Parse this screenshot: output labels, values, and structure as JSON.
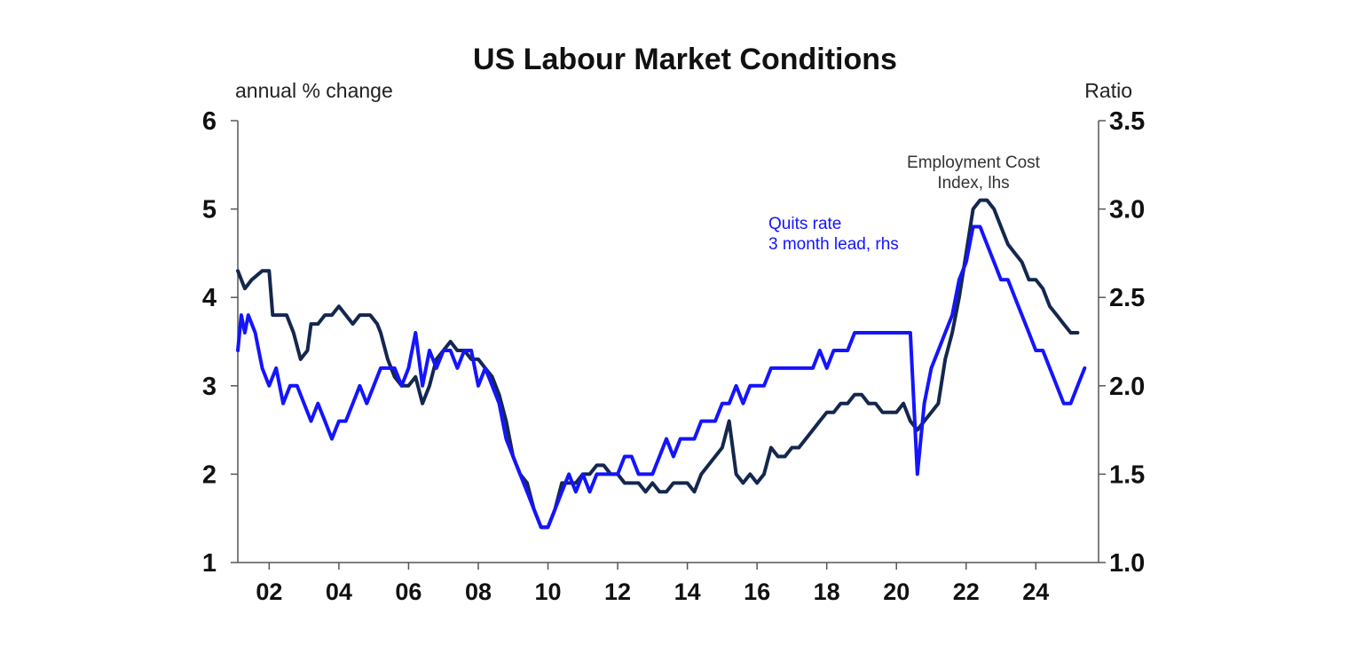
{
  "chart_data": {
    "type": "line",
    "title": "US Labour Market Conditions",
    "left_axis_label": "annual % change",
    "right_axis_label": "Ratio",
    "left_ylim": [
      1,
      6
    ],
    "left_ticks": [
      1,
      2,
      3,
      4,
      5,
      6
    ],
    "right_ylim": [
      1.0,
      3.5
    ],
    "right_ticks": [
      "1.0",
      "1.5",
      "2.0",
      "2.5",
      "3.0",
      "3.5"
    ],
    "xlim": [
      2001.1,
      2025.8
    ],
    "x_ticks": [
      {
        "value": 2002,
        "label": "02"
      },
      {
        "value": 2004,
        "label": "04"
      },
      {
        "value": 2006,
        "label": "06"
      },
      {
        "value": 2008,
        "label": "08"
      },
      {
        "value": 2010,
        "label": "10"
      },
      {
        "value": 2012,
        "label": "12"
      },
      {
        "value": 2014,
        "label": "14"
      },
      {
        "value": 2016,
        "label": "16"
      },
      {
        "value": 2018,
        "label": "18"
      },
      {
        "value": 2020,
        "label": "20"
      },
      {
        "value": 2022,
        "label": "22"
      },
      {
        "value": 2024,
        "label": "24"
      }
    ],
    "grid": false,
    "colors": {
      "eci": "#14274e",
      "quits": "#1414ff",
      "axis": "#555555"
    },
    "annotations": {
      "eci_line1": "Employment Cost",
      "eci_line2": "Index, lhs",
      "quits_line1": "Quits rate",
      "quits_line2": "3 month lead, rhs"
    },
    "series": [
      {
        "key": "eci",
        "axis": "left",
        "points": [
          [
            2001.1,
            4.3
          ],
          [
            2001.3,
            4.1
          ],
          [
            2001.5,
            4.2
          ],
          [
            2001.8,
            4.3
          ],
          [
            2002.0,
            4.3
          ],
          [
            2002.1,
            3.8
          ],
          [
            2002.3,
            3.8
          ],
          [
            2002.5,
            3.8
          ],
          [
            2002.7,
            3.6
          ],
          [
            2002.9,
            3.3
          ],
          [
            2003.1,
            3.4
          ],
          [
            2003.2,
            3.7
          ],
          [
            2003.4,
            3.7
          ],
          [
            2003.6,
            3.8
          ],
          [
            2003.8,
            3.8
          ],
          [
            2004.0,
            3.9
          ],
          [
            2004.2,
            3.8
          ],
          [
            2004.4,
            3.7
          ],
          [
            2004.6,
            3.8
          ],
          [
            2004.9,
            3.8
          ],
          [
            2005.1,
            3.7
          ],
          [
            2005.2,
            3.6
          ],
          [
            2005.4,
            3.3
          ],
          [
            2005.6,
            3.1
          ],
          [
            2005.8,
            3.0
          ],
          [
            2006.0,
            3.0
          ],
          [
            2006.2,
            3.1
          ],
          [
            2006.4,
            2.8
          ],
          [
            2006.6,
            3.0
          ],
          [
            2006.8,
            3.3
          ],
          [
            2007.0,
            3.4
          ],
          [
            2007.2,
            3.5
          ],
          [
            2007.4,
            3.4
          ],
          [
            2007.6,
            3.4
          ],
          [
            2007.8,
            3.3
          ],
          [
            2008.0,
            3.3
          ],
          [
            2008.2,
            3.2
          ],
          [
            2008.4,
            3.1
          ],
          [
            2008.6,
            2.9
          ],
          [
            2008.8,
            2.6
          ],
          [
            2009.0,
            2.2
          ],
          [
            2009.2,
            2.0
          ],
          [
            2009.4,
            1.9
          ],
          [
            2009.6,
            1.6
          ],
          [
            2009.8,
            1.4
          ],
          [
            2010.0,
            1.4
          ],
          [
            2010.2,
            1.6
          ],
          [
            2010.4,
            1.9
          ],
          [
            2010.6,
            1.9
          ],
          [
            2010.8,
            1.9
          ],
          [
            2011.0,
            2.0
          ],
          [
            2011.2,
            2.0
          ],
          [
            2011.4,
            2.1
          ],
          [
            2011.6,
            2.1
          ],
          [
            2011.8,
            2.0
          ],
          [
            2012.0,
            2.0
          ],
          [
            2012.2,
            1.9
          ],
          [
            2012.4,
            1.9
          ],
          [
            2012.6,
            1.9
          ],
          [
            2012.8,
            1.8
          ],
          [
            2013.0,
            1.9
          ],
          [
            2013.2,
            1.8
          ],
          [
            2013.4,
            1.8
          ],
          [
            2013.6,
            1.9
          ],
          [
            2013.8,
            1.9
          ],
          [
            2014.0,
            1.9
          ],
          [
            2014.2,
            1.8
          ],
          [
            2014.4,
            2.0
          ],
          [
            2014.6,
            2.1
          ],
          [
            2014.8,
            2.2
          ],
          [
            2015.0,
            2.3
          ],
          [
            2015.2,
            2.6
          ],
          [
            2015.4,
            2.0
          ],
          [
            2015.6,
            1.9
          ],
          [
            2015.8,
            2.0
          ],
          [
            2016.0,
            1.9
          ],
          [
            2016.2,
            2.0
          ],
          [
            2016.4,
            2.3
          ],
          [
            2016.6,
            2.2
          ],
          [
            2016.8,
            2.2
          ],
          [
            2017.0,
            2.3
          ],
          [
            2017.2,
            2.3
          ],
          [
            2017.4,
            2.4
          ],
          [
            2017.6,
            2.5
          ],
          [
            2017.8,
            2.6
          ],
          [
            2018.0,
            2.7
          ],
          [
            2018.2,
            2.7
          ],
          [
            2018.4,
            2.8
          ],
          [
            2018.6,
            2.8
          ],
          [
            2018.8,
            2.9
          ],
          [
            2019.0,
            2.9
          ],
          [
            2019.2,
            2.8
          ],
          [
            2019.4,
            2.8
          ],
          [
            2019.6,
            2.7
          ],
          [
            2019.8,
            2.7
          ],
          [
            2020.0,
            2.7
          ],
          [
            2020.2,
            2.8
          ],
          [
            2020.4,
            2.6
          ],
          [
            2020.6,
            2.5
          ],
          [
            2020.8,
            2.6
          ],
          [
            2021.0,
            2.7
          ],
          [
            2021.2,
            2.8
          ],
          [
            2021.4,
            3.3
          ],
          [
            2021.6,
            3.6
          ],
          [
            2021.8,
            4.0
          ],
          [
            2022.0,
            4.5
          ],
          [
            2022.2,
            5.0
          ],
          [
            2022.4,
            5.1
          ],
          [
            2022.6,
            5.1
          ],
          [
            2022.8,
            5.0
          ],
          [
            2023.0,
            4.8
          ],
          [
            2023.2,
            4.6
          ],
          [
            2023.4,
            4.5
          ],
          [
            2023.6,
            4.4
          ],
          [
            2023.8,
            4.2
          ],
          [
            2024.0,
            4.2
          ],
          [
            2024.2,
            4.1
          ],
          [
            2024.4,
            3.9
          ],
          [
            2024.6,
            3.8
          ],
          [
            2024.8,
            3.7
          ],
          [
            2025.0,
            3.6
          ],
          [
            2025.2,
            3.6
          ]
        ]
      },
      {
        "key": "quits",
        "axis": "right",
        "points": [
          [
            2001.1,
            2.2
          ],
          [
            2001.2,
            2.4
          ],
          [
            2001.3,
            2.3
          ],
          [
            2001.4,
            2.4
          ],
          [
            2001.6,
            2.3
          ],
          [
            2001.8,
            2.1
          ],
          [
            2002.0,
            2.0
          ],
          [
            2002.2,
            2.1
          ],
          [
            2002.4,
            1.9
          ],
          [
            2002.6,
            2.0
          ],
          [
            2002.8,
            2.0
          ],
          [
            2003.0,
            1.9
          ],
          [
            2003.2,
            1.8
          ],
          [
            2003.4,
            1.9
          ],
          [
            2003.6,
            1.8
          ],
          [
            2003.8,
            1.7
          ],
          [
            2004.0,
            1.8
          ],
          [
            2004.2,
            1.8
          ],
          [
            2004.4,
            1.9
          ],
          [
            2004.6,
            2.0
          ],
          [
            2004.8,
            1.9
          ],
          [
            2005.0,
            2.0
          ],
          [
            2005.2,
            2.1
          ],
          [
            2005.4,
            2.1
          ],
          [
            2005.6,
            2.1
          ],
          [
            2005.8,
            2.0
          ],
          [
            2006.0,
            2.1
          ],
          [
            2006.2,
            2.3
          ],
          [
            2006.4,
            2.0
          ],
          [
            2006.6,
            2.2
          ],
          [
            2006.8,
            2.1
          ],
          [
            2007.0,
            2.2
          ],
          [
            2007.2,
            2.2
          ],
          [
            2007.4,
            2.1
          ],
          [
            2007.6,
            2.2
          ],
          [
            2007.8,
            2.2
          ],
          [
            2008.0,
            2.0
          ],
          [
            2008.2,
            2.1
          ],
          [
            2008.4,
            2.0
          ],
          [
            2008.6,
            1.9
          ],
          [
            2008.8,
            1.7
          ],
          [
            2009.0,
            1.6
          ],
          [
            2009.2,
            1.5
          ],
          [
            2009.4,
            1.4
          ],
          [
            2009.6,
            1.3
          ],
          [
            2009.8,
            1.2
          ],
          [
            2010.0,
            1.2
          ],
          [
            2010.2,
            1.3
          ],
          [
            2010.4,
            1.4
          ],
          [
            2010.6,
            1.5
          ],
          [
            2010.8,
            1.4
          ],
          [
            2011.0,
            1.5
          ],
          [
            2011.2,
            1.4
          ],
          [
            2011.4,
            1.5
          ],
          [
            2011.6,
            1.5
          ],
          [
            2011.8,
            1.5
          ],
          [
            2012.0,
            1.5
          ],
          [
            2012.2,
            1.6
          ],
          [
            2012.4,
            1.6
          ],
          [
            2012.6,
            1.5
          ],
          [
            2012.8,
            1.5
          ],
          [
            2013.0,
            1.5
          ],
          [
            2013.2,
            1.6
          ],
          [
            2013.4,
            1.7
          ],
          [
            2013.6,
            1.6
          ],
          [
            2013.8,
            1.7
          ],
          [
            2014.0,
            1.7
          ],
          [
            2014.2,
            1.7
          ],
          [
            2014.4,
            1.8
          ],
          [
            2014.6,
            1.8
          ],
          [
            2014.8,
            1.8
          ],
          [
            2015.0,
            1.9
          ],
          [
            2015.2,
            1.9
          ],
          [
            2015.4,
            2.0
          ],
          [
            2015.6,
            1.9
          ],
          [
            2015.8,
            2.0
          ],
          [
            2016.0,
            2.0
          ],
          [
            2016.2,
            2.0
          ],
          [
            2016.4,
            2.1
          ],
          [
            2016.6,
            2.1
          ],
          [
            2016.8,
            2.1
          ],
          [
            2017.0,
            2.1
          ],
          [
            2017.2,
            2.1
          ],
          [
            2017.4,
            2.1
          ],
          [
            2017.6,
            2.1
          ],
          [
            2017.8,
            2.2
          ],
          [
            2018.0,
            2.1
          ],
          [
            2018.2,
            2.2
          ],
          [
            2018.4,
            2.2
          ],
          [
            2018.6,
            2.2
          ],
          [
            2018.8,
            2.3
          ],
          [
            2019.0,
            2.3
          ],
          [
            2019.2,
            2.3
          ],
          [
            2019.4,
            2.3
          ],
          [
            2019.6,
            2.3
          ],
          [
            2019.8,
            2.3
          ],
          [
            2020.0,
            2.3
          ],
          [
            2020.2,
            2.3
          ],
          [
            2020.4,
            2.3
          ],
          [
            2020.6,
            1.5
          ],
          [
            2020.8,
            1.9
          ],
          [
            2021.0,
            2.1
          ],
          [
            2021.2,
            2.2
          ],
          [
            2021.4,
            2.3
          ],
          [
            2021.6,
            2.4
          ],
          [
            2021.8,
            2.6
          ],
          [
            2022.0,
            2.7
          ],
          [
            2022.2,
            2.9
          ],
          [
            2022.4,
            2.9
          ],
          [
            2022.6,
            2.8
          ],
          [
            2022.8,
            2.7
          ],
          [
            2023.0,
            2.6
          ],
          [
            2023.2,
            2.6
          ],
          [
            2023.4,
            2.5
          ],
          [
            2023.6,
            2.4
          ],
          [
            2023.8,
            2.3
          ],
          [
            2024.0,
            2.2
          ],
          [
            2024.2,
            2.2
          ],
          [
            2024.4,
            2.1
          ],
          [
            2024.6,
            2.0
          ],
          [
            2024.8,
            1.9
          ],
          [
            2025.0,
            1.9
          ],
          [
            2025.2,
            2.0
          ],
          [
            2025.4,
            2.1
          ]
        ]
      }
    ]
  }
}
